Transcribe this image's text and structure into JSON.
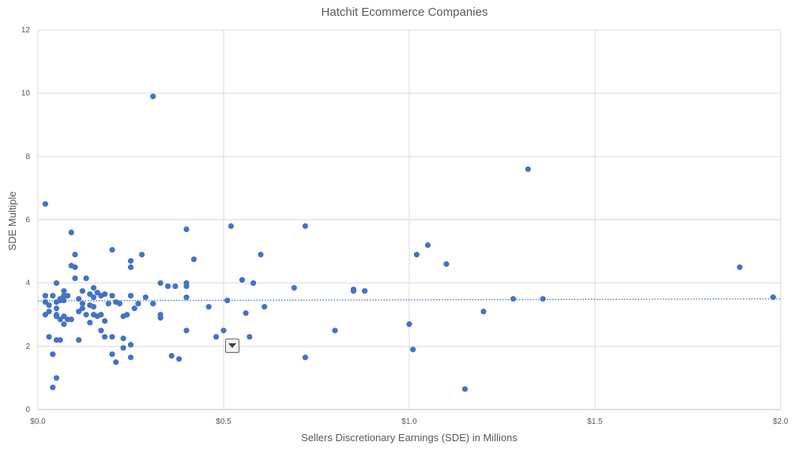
{
  "colors": {
    "points": "#4472C4",
    "grid": "#d9d9d9",
    "text": "#595959",
    "trendline": "#4472C4",
    "axis": "#bfbfbf"
  },
  "chart_data": {
    "type": "scatter",
    "title": "Hatchit Ecommerce Companies",
    "xlabel": "Sellers Discretionary Earnings (SDE) in Millions",
    "ylabel": "SDE Multiple",
    "xlim": [
      0,
      2.0
    ],
    "ylim": [
      0,
      12
    ],
    "x_ticks": [
      0,
      0.5,
      1.0,
      1.5,
      2.0
    ],
    "x_tick_labels": [
      "$0.0",
      "$0.5",
      "$1.0",
      "$1.5",
      "$2.0"
    ],
    "y_ticks": [
      0,
      2,
      4,
      6,
      8,
      10,
      12
    ],
    "y_tick_labels": [
      "0",
      "2",
      "4",
      "6",
      "8",
      "10",
      "12"
    ],
    "grid": true,
    "trendline": {
      "type": "linear",
      "style": "dotted",
      "y_start": 3.44,
      "y_end": 3.5
    },
    "points": [
      [
        0.02,
        6.5
      ],
      [
        0.02,
        3.6
      ],
      [
        0.02,
        3.4
      ],
      [
        0.02,
        3.0
      ],
      [
        0.03,
        3.3
      ],
      [
        0.03,
        3.1
      ],
      [
        0.03,
        2.3
      ],
      [
        0.04,
        1.75
      ],
      [
        0.04,
        3.6
      ],
      [
        0.04,
        0.7
      ],
      [
        0.05,
        3.4
      ],
      [
        0.05,
        3.2
      ],
      [
        0.05,
        3.0
      ],
      [
        0.05,
        2.95
      ],
      [
        0.05,
        2.2
      ],
      [
        0.05,
        4.0
      ],
      [
        0.05,
        1.0
      ],
      [
        0.06,
        3.5
      ],
      [
        0.06,
        3.45
      ],
      [
        0.06,
        2.85
      ],
      [
        0.06,
        2.2
      ],
      [
        0.07,
        3.6
      ],
      [
        0.07,
        3.75
      ],
      [
        0.07,
        2.95
      ],
      [
        0.07,
        2.7
      ],
      [
        0.07,
        3.45
      ],
      [
        0.08,
        3.6
      ],
      [
        0.08,
        2.85
      ],
      [
        0.09,
        4.55
      ],
      [
        0.09,
        2.85
      ],
      [
        0.09,
        5.6
      ],
      [
        0.1,
        4.9
      ],
      [
        0.1,
        4.15
      ],
      [
        0.1,
        4.5
      ],
      [
        0.11,
        3.5
      ],
      [
        0.11,
        2.2
      ],
      [
        0.11,
        3.1
      ],
      [
        0.12,
        3.75
      ],
      [
        0.12,
        3.35
      ],
      [
        0.12,
        3.2
      ],
      [
        0.13,
        4.15
      ],
      [
        0.13,
        3.0
      ],
      [
        0.14,
        3.3
      ],
      [
        0.14,
        3.65
      ],
      [
        0.14,
        2.75
      ],
      [
        0.15,
        3.55
      ],
      [
        0.15,
        3.25
      ],
      [
        0.15,
        3.85
      ],
      [
        0.15,
        3.0
      ],
      [
        0.16,
        3.7
      ],
      [
        0.16,
        2.95
      ],
      [
        0.17,
        3.0
      ],
      [
        0.17,
        3.6
      ],
      [
        0.17,
        2.5
      ],
      [
        0.18,
        2.3
      ],
      [
        0.18,
        2.8
      ],
      [
        0.18,
        3.65
      ],
      [
        0.19,
        3.35
      ],
      [
        0.2,
        3.6
      ],
      [
        0.2,
        2.3
      ],
      [
        0.2,
        5.05
      ],
      [
        0.2,
        1.75
      ],
      [
        0.21,
        1.5
      ],
      [
        0.21,
        3.4
      ],
      [
        0.22,
        3.35
      ],
      [
        0.23,
        1.95
      ],
      [
        0.23,
        2.25
      ],
      [
        0.23,
        2.95
      ],
      [
        0.24,
        3.0
      ],
      [
        0.25,
        3.6
      ],
      [
        0.25,
        4.7
      ],
      [
        0.25,
        4.5
      ],
      [
        0.25,
        2.05
      ],
      [
        0.25,
        1.65
      ],
      [
        0.26,
        3.2
      ],
      [
        0.27,
        3.35
      ],
      [
        0.28,
        4.9
      ],
      [
        0.29,
        3.55
      ],
      [
        0.31,
        3.35
      ],
      [
        0.31,
        9.9
      ],
      [
        0.33,
        4.0
      ],
      [
        0.33,
        3.0
      ],
      [
        0.33,
        2.9
      ],
      [
        0.35,
        3.9
      ],
      [
        0.36,
        1.7
      ],
      [
        0.37,
        3.9
      ],
      [
        0.38,
        1.6
      ],
      [
        0.4,
        5.7
      ],
      [
        0.4,
        4.0
      ],
      [
        0.4,
        3.9
      ],
      [
        0.4,
        3.55
      ],
      [
        0.4,
        2.5
      ],
      [
        0.42,
        4.75
      ],
      [
        0.46,
        3.25
      ],
      [
        0.48,
        2.3
      ],
      [
        0.5,
        2.5
      ],
      [
        0.51,
        3.45
      ],
      [
        0.52,
        5.8
      ],
      [
        0.55,
        4.1
      ],
      [
        0.56,
        3.05
      ],
      [
        0.57,
        2.3
      ],
      [
        0.58,
        4.0
      ],
      [
        0.6,
        4.9
      ],
      [
        0.61,
        3.25
      ],
      [
        0.69,
        3.85
      ],
      [
        0.72,
        5.8
      ],
      [
        0.72,
        1.65
      ],
      [
        0.8,
        2.5
      ],
      [
        0.85,
        3.8
      ],
      [
        0.85,
        3.75
      ],
      [
        0.88,
        3.75
      ],
      [
        1.0,
        2.7
      ],
      [
        1.01,
        1.9
      ],
      [
        1.02,
        4.9
      ],
      [
        1.05,
        5.2
      ],
      [
        1.1,
        4.6
      ],
      [
        1.15,
        0.65
      ],
      [
        1.2,
        3.1
      ],
      [
        1.28,
        3.5
      ],
      [
        1.32,
        7.6
      ],
      [
        1.36,
        3.5
      ],
      [
        1.89,
        4.5
      ],
      [
        1.98,
        3.55
      ]
    ]
  }
}
